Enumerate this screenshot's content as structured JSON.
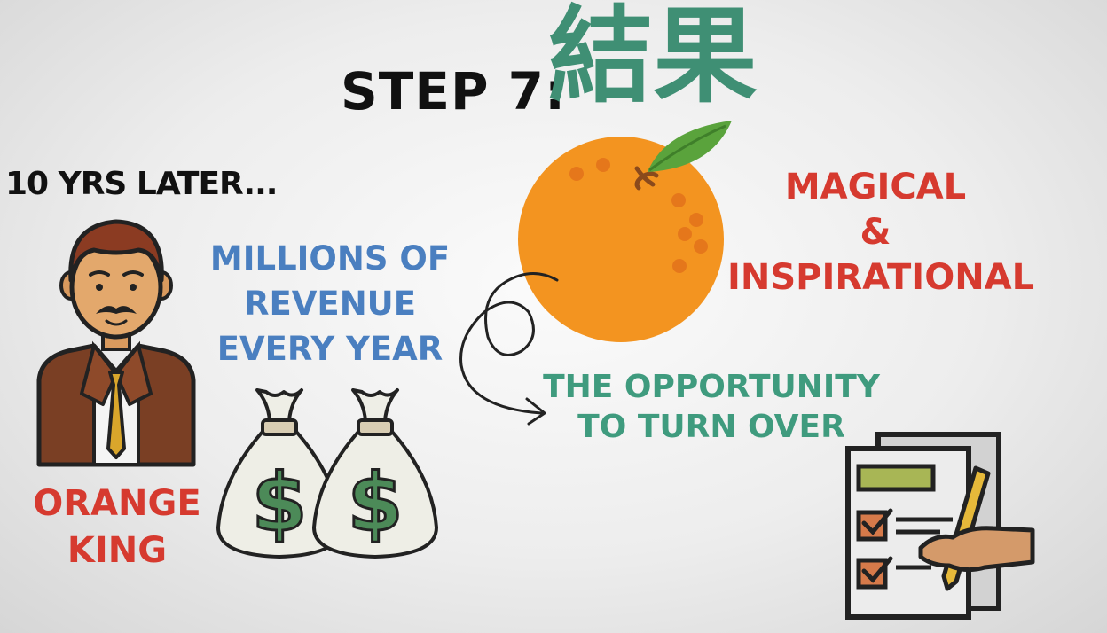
{
  "title": {
    "step": "STEP 7:",
    "kanji": "結果"
  },
  "later": "10 YRS LATER...",
  "revenue": {
    "lines": [
      "MILLIONS OF",
      "REVENUE",
      "EVERY YEAR"
    ]
  },
  "qualities": {
    "lines": [
      "MAGICAL",
      "&",
      "INSPIRATIONAL"
    ]
  },
  "opportunity": {
    "lines": [
      "THE OPPORTUNITY",
      "TO TURN OVER"
    ]
  },
  "person": {
    "lines": [
      "ORANGE",
      "KING"
    ]
  },
  "money_symbol": "$",
  "colors": {
    "green": "#3f8f74",
    "blue": "#4a7fc0",
    "red": "#d63a2f",
    "orange": "#f39420",
    "teal": "#3f9b7e"
  }
}
